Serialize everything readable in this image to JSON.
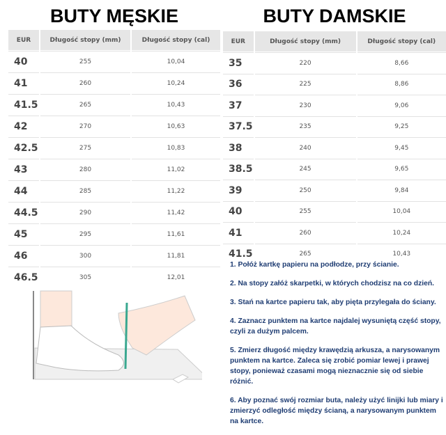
{
  "men": {
    "title": "BUTY MĘSKIE",
    "headers": [
      "EUR",
      "Długość stopy (mm)",
      "Długość stopy (cal)"
    ],
    "rows": [
      [
        "40",
        "255",
        "10,04"
      ],
      [
        "41",
        "260",
        "10,24"
      ],
      [
        "41.5",
        "265",
        "10,43"
      ],
      [
        "42",
        "270",
        "10,63"
      ],
      [
        "42.5",
        "275",
        "10,83"
      ],
      [
        "43",
        "280",
        "11,02"
      ],
      [
        "44",
        "285",
        "11,22"
      ],
      [
        "44.5",
        "290",
        "11,42"
      ],
      [
        "45",
        "295",
        "11,61"
      ],
      [
        "46",
        "300",
        "11,81"
      ],
      [
        "46.5",
        "305",
        "12,01"
      ]
    ]
  },
  "women": {
    "title": "BUTY DAMSKIE",
    "headers": [
      "EUR",
      "Długość stopy (mm)",
      "Długość stopy (cal)"
    ],
    "rows": [
      [
        "35",
        "220",
        "8,66"
      ],
      [
        "36",
        "225",
        "8,86"
      ],
      [
        "37",
        "230",
        "9,06"
      ],
      [
        "37.5",
        "235",
        "9,25"
      ],
      [
        "38",
        "240",
        "9,45"
      ],
      [
        "38.5",
        "245",
        "9,65"
      ],
      [
        "39",
        "250",
        "9,84"
      ],
      [
        "40",
        "255",
        "10,04"
      ],
      [
        "41",
        "260",
        "10,24"
      ],
      [
        "41.5",
        "265",
        "10,43"
      ]
    ]
  },
  "instructions": [
    "1. Połóż kartkę papieru na podłodze, przy ścianie.",
    "2. Na stopy załóż skarpetki, w których chodzisz na co dzień.",
    "3. Stań na kartce papieru tak, aby pięta przylegała do ściany.",
    "4. Zaznacz punktem na kartce najdalej wysuniętą część stopy, czyli za dużym palcem.",
    "5. Zmierz długość między krawędzią arkusza, a narysowanym punktem na kartce. Zaleca się zrobić pomiar lewej i prawej stopy, ponieważ czasami mogą nieznacznie się od siebie różnić.",
    "6. Aby poznać swój rozmiar buta, należy użyć linijki lub miary i zmierzyć odległość między ścianą, a narysowanym punktem na kartce."
  ],
  "colors": {
    "instruction_text": "#1f3d73",
    "header_bg": "#e6e6e6",
    "pen": "#3aa890"
  }
}
